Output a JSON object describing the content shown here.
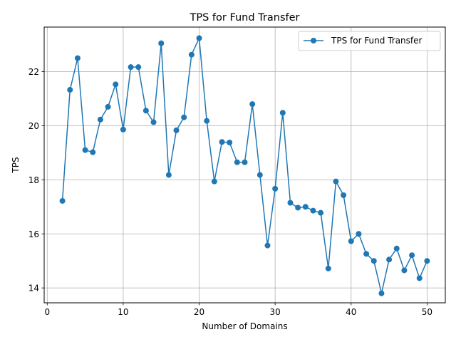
{
  "chart_data": {
    "type": "line",
    "title": "TPS for Fund Transfer",
    "xlabel": "Number of Domains",
    "ylabel": "TPS",
    "xlim": [
      -0.4,
      52.4
    ],
    "ylim": [
      13.45,
      23.65
    ],
    "xticks": [
      0,
      10,
      20,
      30,
      40,
      50
    ],
    "yticks": [
      14,
      16,
      18,
      20,
      22
    ],
    "grid": true,
    "legend_position": "top-right",
    "color": "#1f77b4",
    "series": [
      {
        "name": "TPS for Fund Transfer",
        "x": [
          2,
          3,
          4,
          5,
          6,
          7,
          8,
          9,
          10,
          11,
          12,
          13,
          14,
          15,
          16,
          17,
          18,
          19,
          20,
          21,
          22,
          23,
          24,
          25,
          26,
          27,
          28,
          29,
          30,
          31,
          32,
          33,
          34,
          35,
          36,
          37,
          38,
          39,
          40,
          41,
          42,
          43,
          44,
          45,
          46,
          47,
          48,
          49,
          50
        ],
        "values": [
          17.22,
          21.33,
          22.5,
          19.1,
          19.02,
          20.23,
          20.7,
          21.53,
          19.86,
          22.17,
          22.17,
          20.56,
          20.13,
          23.05,
          18.18,
          19.83,
          20.31,
          22.63,
          23.24,
          20.18,
          17.94,
          19.4,
          19.38,
          18.65,
          18.65,
          20.8,
          18.18,
          15.57,
          17.67,
          20.48,
          17.15,
          16.97,
          17.0,
          16.86,
          16.78,
          14.72,
          17.94,
          17.43,
          15.73,
          16.0,
          15.26,
          15.0,
          13.8,
          15.05,
          15.46,
          14.65,
          15.21,
          14.36,
          15.0
        ]
      }
    ]
  }
}
